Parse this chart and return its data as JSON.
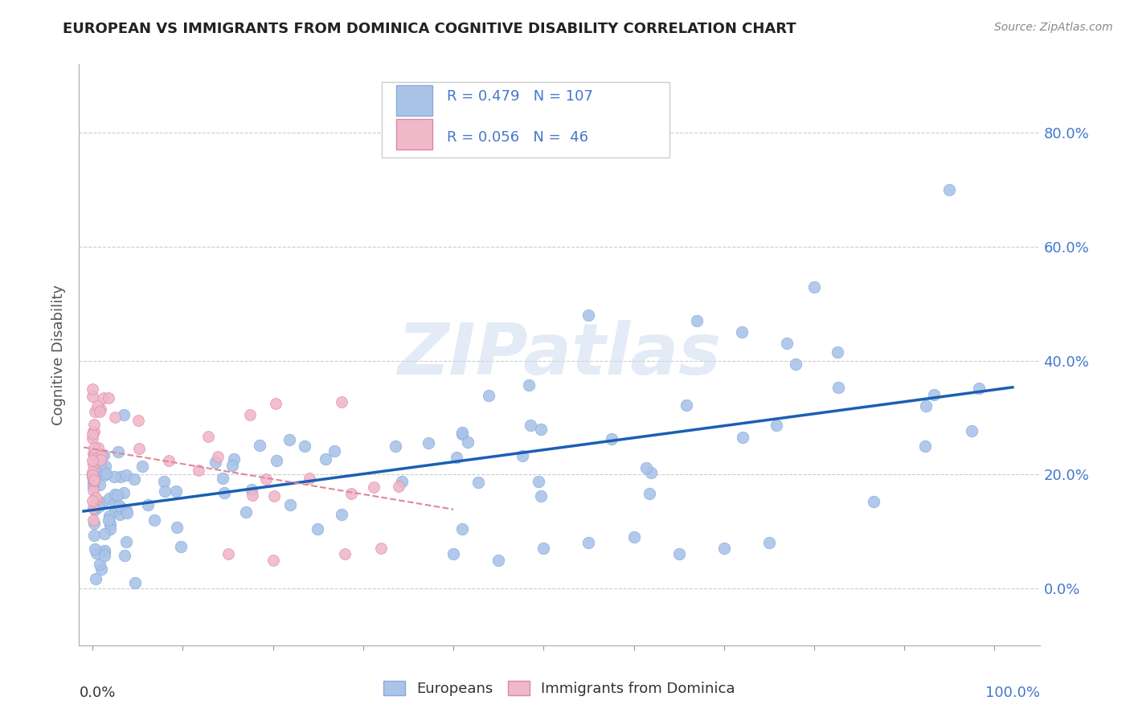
{
  "title": "EUROPEAN VS IMMIGRANTS FROM DOMINICA COGNITIVE DISABILITY CORRELATION CHART",
  "source": "Source: ZipAtlas.com",
  "ylabel": "Cognitive Disability",
  "blue_color": "#aac4e8",
  "pink_color": "#f0b8c8",
  "blue_edge_color": "#88aadd",
  "pink_edge_color": "#dd88aa",
  "blue_line_color": "#1a5fb4",
  "pink_line_color": "#e08898",
  "watermark": "ZIPatlas",
  "legend_label1": "Europeans",
  "legend_label2": "Immigrants from Dominica",
  "ytick_positions": [
    0.0,
    0.2,
    0.4,
    0.6,
    0.8
  ],
  "ytick_labels": [
    "0.0%",
    "20.0%",
    "40.0%",
    "60.0%",
    "80.0%"
  ],
  "grid_color": "#cccccc",
  "text_color_blue": "#4477cc",
  "text_color_dark": "#333333",
  "source_color": "#888888"
}
